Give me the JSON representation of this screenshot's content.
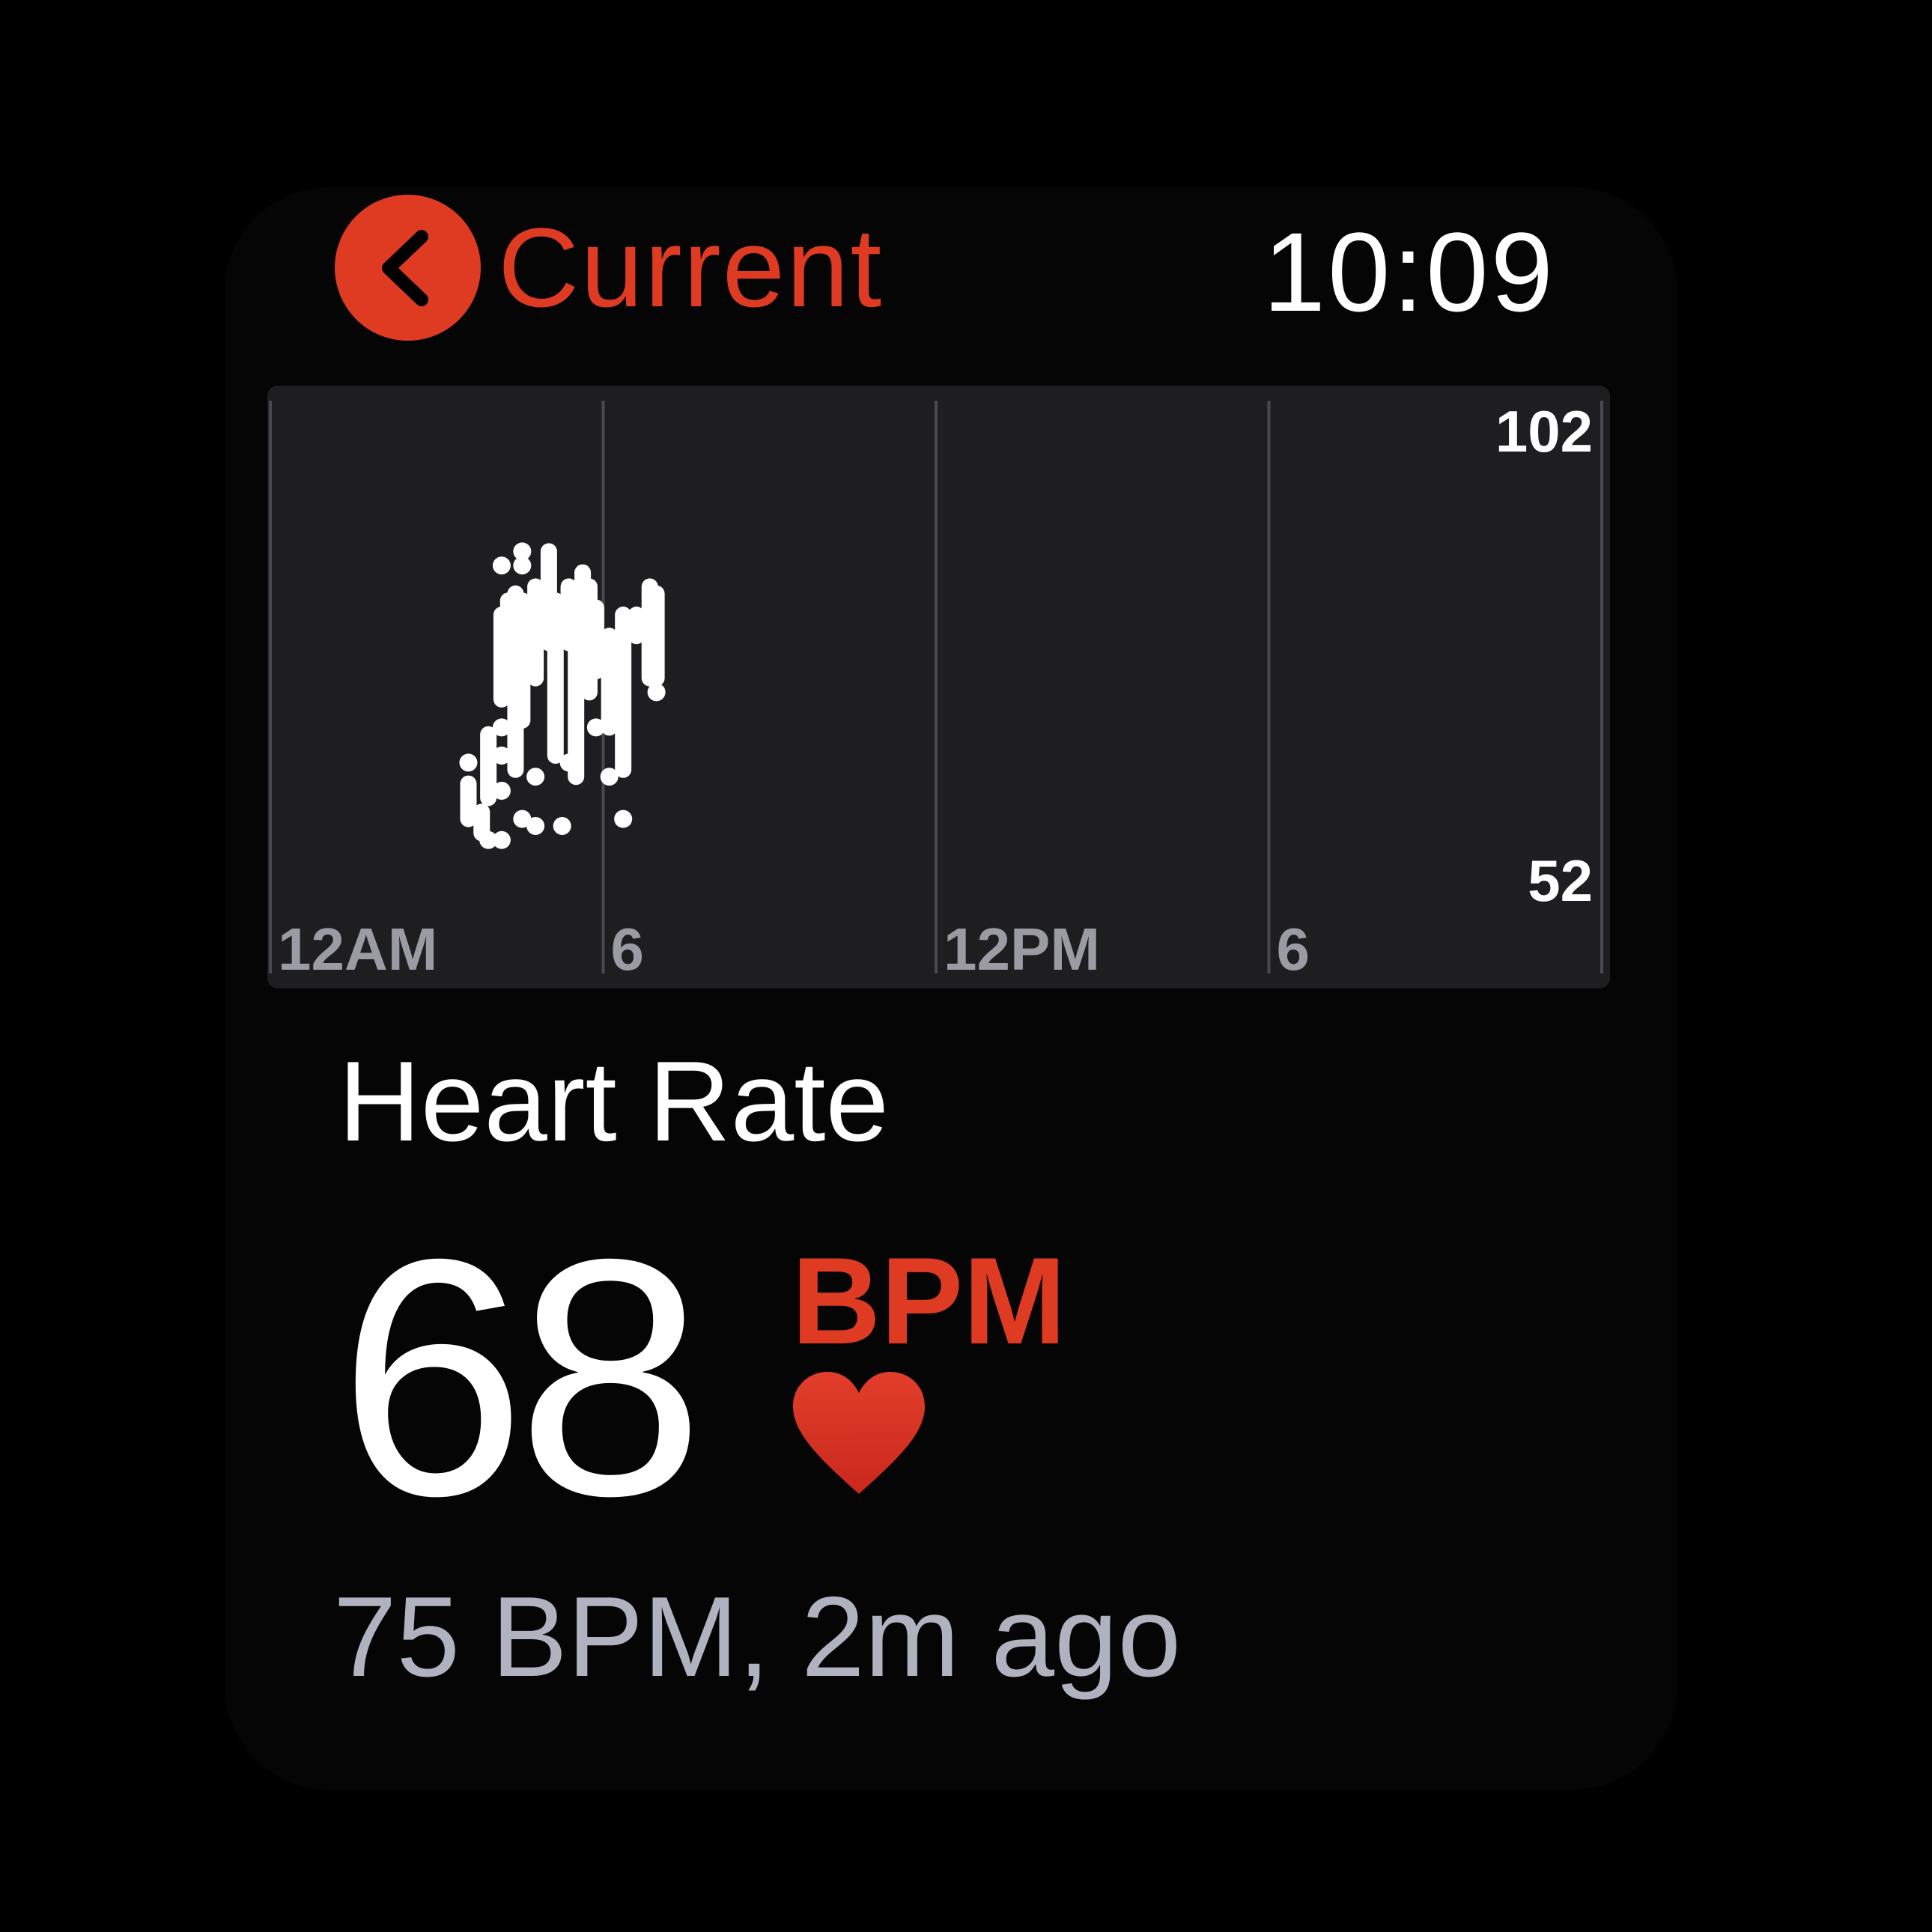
{
  "header": {
    "back_label": "Current",
    "time": "10:09"
  },
  "chart_data": {
    "type": "scatter",
    "x_ticks": [
      "12AM",
      "6",
      "12PM",
      "6"
    ],
    "y_labels": {
      "max": "102",
      "min": "52"
    },
    "ylim": [
      52,
      102
    ],
    "xlim": [
      0,
      24
    ],
    "points_range": [
      [
        3.57,
        63,
        58
      ],
      [
        3.81,
        59,
        56
      ],
      [
        3.93,
        70,
        61
      ],
      [
        4.17,
        87,
        75
      ],
      [
        4.29,
        89,
        84
      ],
      [
        4.42,
        90,
        65
      ],
      [
        4.54,
        89,
        72
      ],
      [
        4.78,
        91,
        78
      ],
      [
        5.02,
        96,
        83
      ],
      [
        5.14,
        89,
        67
      ],
      [
        5.38,
        91,
        83
      ],
      [
        5.51,
        89,
        64
      ],
      [
        5.63,
        93,
        81
      ],
      [
        5.75,
        91,
        76
      ],
      [
        5.87,
        88,
        79
      ],
      [
        6.11,
        84,
        71
      ],
      [
        6.36,
        87,
        65
      ],
      [
        6.6,
        87,
        84
      ],
      [
        6.84,
        91,
        78
      ],
      [
        6.96,
        90,
        78
      ]
    ],
    "points_single": [
      [
        3.57,
        66
      ],
      [
        3.93,
        55
      ],
      [
        4.17,
        94
      ],
      [
        4.17,
        55
      ],
      [
        4.17,
        67
      ],
      [
        4.17,
        71
      ],
      [
        4.54,
        96
      ],
      [
        4.54,
        58
      ],
      [
        4.54,
        94
      ],
      [
        4.78,
        57
      ],
      [
        5.38,
        66
      ],
      [
        5.26,
        57
      ],
      [
        5.87,
        71
      ],
      [
        6.36,
        58
      ],
      [
        6.96,
        76
      ],
      [
        4.17,
        62
      ],
      [
        4.78,
        64
      ],
      [
        6.11,
        64
      ]
    ],
    "colors": {
      "points": "#ffffff",
      "background": "#1e1e21",
      "grid": "#4a4a4e",
      "x_ticks": "#9a9ba3",
      "y_labels": "#ffffff"
    }
  },
  "metric": {
    "title": "Heart Rate",
    "value": "68",
    "unit": "BPM",
    "previous": "75 BPM, 2m ago"
  },
  "colors": {
    "accent": "#de3b22",
    "text": "#ffffff",
    "secondary": "#b0b3bf"
  },
  "icons": {
    "back": "chevron-left-icon",
    "heart": "heart-icon"
  }
}
